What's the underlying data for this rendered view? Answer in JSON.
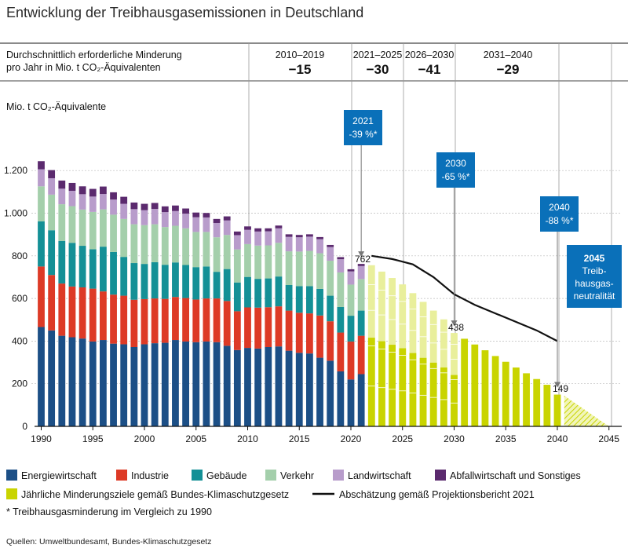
{
  "title": "Entwicklung der Treibhausgasemissionen in Deutschland",
  "header": {
    "desc_line1": "Durchschnittlich erforderliche Minderung",
    "desc_line2": "pro Jahr in Mio. t CO₂-Äquivalenten",
    "periods": [
      {
        "label": "2010–2019",
        "value": "−15"
      },
      {
        "label": "2021–2025",
        "value": "−30"
      },
      {
        "label": "2026–2030",
        "value": "−41"
      },
      {
        "label": "2031–2040",
        "value": "−29"
      }
    ]
  },
  "callouts": [
    {
      "line1": "2021",
      "line2": "-39 %*"
    },
    {
      "line1": "2030",
      "line2": "-65 %*"
    },
    {
      "line1": "2040",
      "line2": "-88 %*"
    },
    {
      "line1": "2045",
      "line2": "Treib-",
      "line3": "hausgas-",
      "line4": "neutralität"
    }
  ],
  "value_labels": [
    "762",
    "438",
    "149"
  ],
  "legend": [
    {
      "key": "energie",
      "label": "Energiewirtschaft",
      "color": "#1c4f86"
    },
    {
      "key": "industrie",
      "label": "Industrie",
      "color": "#dd3a26"
    },
    {
      "key": "gebaeude",
      "label": "Gebäude",
      "color": "#149096"
    },
    {
      "key": "verkehr",
      "label": "Verkehr",
      "color": "#a4cfab"
    },
    {
      "key": "landwirtschaft",
      "label": "Landwirtschaft",
      "color": "#b89ccb"
    },
    {
      "key": "abfall",
      "label": "Abfallwirtschaft und Sonstiges",
      "color": "#5b2a6e"
    }
  ],
  "legend2": [
    {
      "key": "ziele",
      "label": "Jährliche Minderungsziele gemäß Bundes-Klimaschutzgesetz",
      "color": "#c9d400"
    },
    {
      "key": "projektion",
      "label": "Abschätzung gemäß Projektionsbericht 2021",
      "color": "#111111"
    }
  ],
  "footnote": "* Treibhausgasminderung im Vergleich zu 1990",
  "source": "Quellen: Umweltbundesamt, Bundes-Klimaschutzgesetz",
  "colors": {
    "callout_bg": "#0a70b9",
    "grid": "#bbbbbb",
    "target_light": "#e9ef9c"
  },
  "chart_data": {
    "type": "bar",
    "stacked": true,
    "title": "Entwicklung der Treibhausgasemissionen in Deutschland",
    "ylabel": "Mio. t CO₂-Äquivalente",
    "xlim": [
      1990,
      2045
    ],
    "ylim": [
      0,
      1300
    ],
    "yticks": [
      0,
      200,
      400,
      600,
      800,
      1000,
      1200
    ],
    "ytick_labels": [
      "0",
      "200",
      "400",
      "600",
      "800",
      "1.000",
      "1.200"
    ],
    "xticks": [
      1990,
      1995,
      2000,
      2005,
      2010,
      2015,
      2020,
      2025,
      2030,
      2035,
      2040,
      2045
    ],
    "years": [
      1990,
      1991,
      1992,
      1993,
      1994,
      1995,
      1996,
      1997,
      1998,
      1999,
      2000,
      2001,
      2002,
      2003,
      2004,
      2005,
      2006,
      2007,
      2008,
      2009,
      2010,
      2011,
      2012,
      2013,
      2014,
      2015,
      2016,
      2017,
      2018,
      2019,
      2020,
      2021
    ],
    "series": [
      {
        "name": "Energiewirtschaft",
        "values": [
          466,
          450,
          425,
          418,
          412,
          398,
          405,
          388,
          385,
          372,
          385,
          390,
          392,
          405,
          398,
          395,
          398,
          395,
          378,
          358,
          368,
          365,
          372,
          375,
          355,
          345,
          342,
          322,
          308,
          258,
          220,
          245
        ]
      },
      {
        "name": "Industrie",
        "values": [
          284,
          260,
          245,
          238,
          240,
          248,
          228,
          230,
          228,
          222,
          212,
          210,
          206,
          202,
          204,
          200,
          202,
          205,
          210,
          182,
          190,
          192,
          187,
          188,
          188,
          188,
          188,
          198,
          185,
          182,
          178,
          180
        ]
      },
      {
        "name": "Gebäude",
        "values": [
          212,
          210,
          200,
          205,
          195,
          185,
          210,
          200,
          182,
          172,
          165,
          170,
          160,
          162,
          155,
          152,
          150,
          125,
          150,
          135,
          143,
          135,
          135,
          140,
          120,
          125,
          128,
          125,
          120,
          120,
          121,
          118
        ]
      },
      {
        "name": "Verkehr",
        "values": [
          164,
          167,
          172,
          172,
          170,
          175,
          175,
          175,
          178,
          182,
          182,
          178,
          177,
          172,
          172,
          165,
          162,
          162,
          160,
          155,
          154,
          156,
          155,
          158,
          158,
          162,
          165,
          167,
          164,
          162,
          146,
          148
        ]
      },
      {
        "name": "Landwirtschaft",
        "values": [
          80,
          77,
          73,
          72,
          72,
          72,
          72,
          71,
          71,
          71,
          70,
          72,
          70,
          69,
          69,
          69,
          68,
          67,
          68,
          67,
          67,
          66,
          66,
          68,
          68,
          67,
          67,
          66,
          64,
          62,
          62,
          61
        ]
      },
      {
        "name": "Abfallwirtschaft und Sonstiges",
        "values": [
          38,
          38,
          38,
          37,
          37,
          36,
          35,
          34,
          33,
          31,
          30,
          28,
          27,
          26,
          24,
          22,
          21,
          19,
          19,
          17,
          16,
          15,
          14,
          13,
          12,
          11,
          11,
          10,
          10,
          10,
          10,
          10
        ]
      }
    ],
    "targets": {
      "name": "Jährliche Minderungsziele gemäß Bundes-Klimaschutzgesetz",
      "years": [
        2022,
        2023,
        2024,
        2025,
        2026,
        2027,
        2028,
        2029,
        2030,
        2031,
        2032,
        2033,
        2034,
        2035,
        2036,
        2037,
        2038,
        2039,
        2040
      ],
      "values": [
        756,
        726,
        696,
        666,
        625,
        584,
        543,
        502,
        438,
        411,
        384,
        357,
        330,
        303,
        276,
        249,
        222,
        195,
        149
      ]
    },
    "neutrality_wedge": {
      "years": [
        2041,
        2045
      ],
      "values": [
        149,
        0
      ]
    },
    "projection": {
      "name": "Abschätzung gemäß Projektionsbericht 2021",
      "x": [
        2022,
        2024,
        2026,
        2028,
        2030,
        2032,
        2035,
        2038,
        2040
      ],
      "y": [
        800,
        785,
        760,
        700,
        620,
        570,
        510,
        450,
        400
      ]
    },
    "annotations": [
      {
        "year": 2021,
        "value": 762,
        "label": "762"
      },
      {
        "year": 2030,
        "value": 438,
        "label": "438"
      },
      {
        "year": 2040,
        "value": 149,
        "label": "149"
      }
    ]
  }
}
